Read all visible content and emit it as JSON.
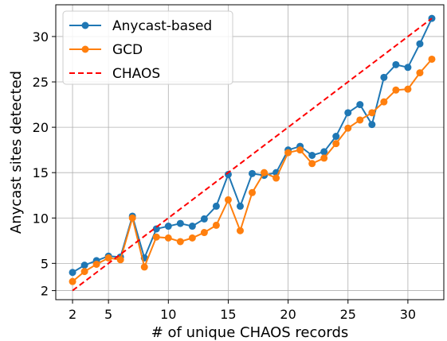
{
  "chart_data": {
    "type": "line",
    "xlabel": "# of unique CHAOS records",
    "ylabel": "Anycast sites detected",
    "xlim": [
      0.6,
      33.0
    ],
    "ylim": [
      1.0,
      33.5
    ],
    "xticks": [
      2,
      5,
      10,
      15,
      20,
      25,
      30
    ],
    "yticks": [
      2,
      5,
      10,
      15,
      20,
      25,
      30
    ],
    "grid": true,
    "legend_position": "top-left",
    "x": [
      2,
      3,
      4,
      5,
      6,
      7,
      8,
      9,
      10,
      11,
      12,
      13,
      14,
      15,
      16,
      17,
      18,
      19,
      20,
      21,
      22,
      23,
      24,
      25,
      26,
      27,
      28,
      29,
      30,
      31,
      32
    ],
    "series": [
      {
        "name": "Anycast-based",
        "color": "#1f77b4",
        "style": "solid-marker",
        "values": [
          4.0,
          4.8,
          5.3,
          5.8,
          5.7,
          10.2,
          5.6,
          8.8,
          9.1,
          9.4,
          9.1,
          9.9,
          11.3,
          14.8,
          11.3,
          14.9,
          14.7,
          15.0,
          17.5,
          17.9,
          16.9,
          17.3,
          19.0,
          21.6,
          22.5,
          20.3,
          25.5,
          26.9,
          26.6,
          29.2,
          32.0
        ]
      },
      {
        "name": "GCD",
        "color": "#ff7f0e",
        "style": "solid-marker",
        "values": [
          3.0,
          4.1,
          4.9,
          5.6,
          5.4,
          10.0,
          4.6,
          7.9,
          7.8,
          7.4,
          7.8,
          8.4,
          9.2,
          12.0,
          8.6,
          12.8,
          15.0,
          14.4,
          17.2,
          17.5,
          16.0,
          16.6,
          18.2,
          19.9,
          20.8,
          21.6,
          22.8,
          24.1,
          24.2,
          26.0,
          27.5
        ]
      },
      {
        "name": "CHAOS",
        "color": "#ff0000",
        "style": "dashed",
        "values": [
          2,
          3,
          4,
          5,
          6,
          7,
          8,
          9,
          10,
          11,
          12,
          13,
          14,
          15,
          16,
          17,
          18,
          19,
          20,
          21,
          22,
          23,
          24,
          25,
          26,
          27,
          28,
          29,
          30,
          31,
          32
        ]
      }
    ]
  }
}
